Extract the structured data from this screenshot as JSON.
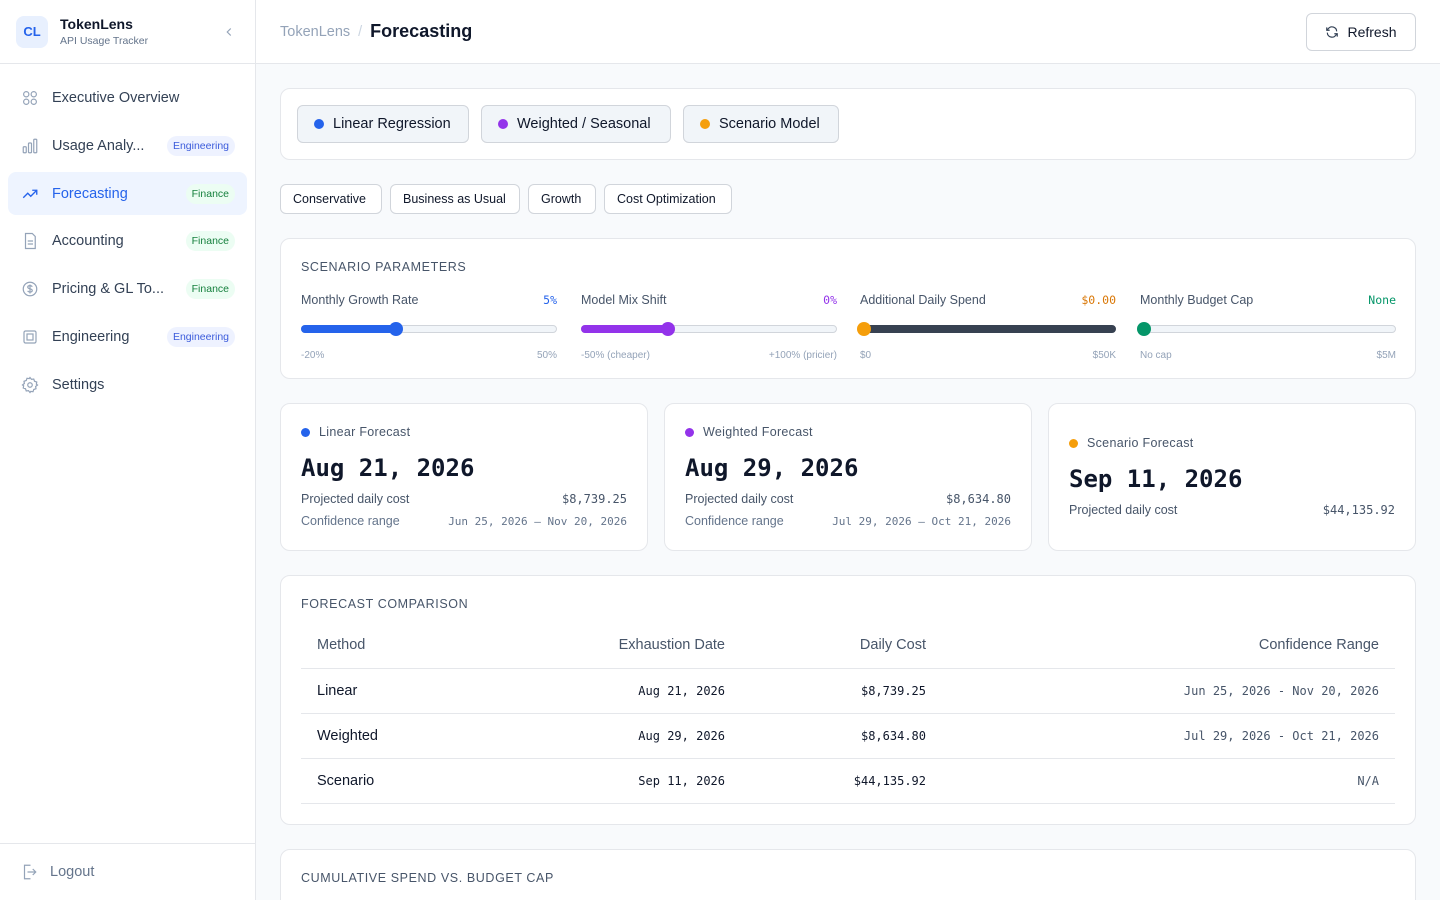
{
  "app": {
    "logo": "CL",
    "name": "TokenLens",
    "subtitle": "API Usage Tracker"
  },
  "sidebar": {
    "items": [
      {
        "label": "Executive Overview",
        "icon": "grid-icon",
        "badge": ""
      },
      {
        "label": "Usage Analytics",
        "icon": "bar-chart-icon",
        "badge": "Engineering"
      },
      {
        "label": "Forecasting",
        "icon": "trend-up-icon",
        "badge": "Finance",
        "active": true
      },
      {
        "label": "Accounting",
        "icon": "document-icon",
        "badge": "Finance"
      },
      {
        "label": "Pricing & GL Tools",
        "icon": "dollar-circle-icon",
        "badge": "Finance"
      },
      {
        "label": "Engineering",
        "icon": "chip-icon",
        "badge": "Engineering"
      },
      {
        "label": "Settings",
        "icon": "gear-icon",
        "badge": ""
      }
    ],
    "logout": "Logout"
  },
  "header": {
    "breadcrumb_root": "TokenLens",
    "breadcrumb_sep": "/",
    "title": "Forecasting",
    "refresh": "Refresh"
  },
  "methods": [
    {
      "label": "Linear Regression",
      "color": "#2563eb"
    },
    {
      "label": "Weighted / Seasonal",
      "color": "#9333ea"
    },
    {
      "label": "Scenario Model",
      "color": "#f59e0b"
    }
  ],
  "presets": [
    "Conservative",
    "Business as Usual",
    "Growth",
    "Cost Optimization"
  ],
  "params": {
    "title": "SCENARIO PARAMETERS",
    "items": [
      {
        "label": "Monthly Growth Rate",
        "value": "5%",
        "min": "-20%",
        "max": "50%",
        "position": 0.37,
        "color": "#2563eb"
      },
      {
        "label": "Model Mix Shift",
        "value": "0%",
        "min": "-50% (cheaper)",
        "max": "+100% (pricier)",
        "position": 0.34,
        "color": "#9333ea"
      },
      {
        "label": "Additional Daily Spend",
        "value": "$0.00",
        "min": "$0",
        "max": "$50K",
        "position": 0.0,
        "color": "#f59e0b"
      },
      {
        "label": "Monthly Budget Cap",
        "value": "None",
        "min": "No cap",
        "max": "$5M",
        "position": 0.0,
        "color": "#059669"
      }
    ]
  },
  "forecasts": {
    "linear": {
      "title": "Linear Forecast",
      "date": "Aug 21, 2026",
      "cost_label": "Projected daily cost",
      "cost": "$8,739.25",
      "range_label": "Confidence range",
      "range": "Jun 25, 2026 — Nov 20, 2026"
    },
    "weighted": {
      "title": "Weighted Forecast",
      "date": "Aug 29, 2026",
      "cost_label": "Projected daily cost",
      "cost": "$8,634.80",
      "range_label": "Confidence range",
      "range": "Jul 29, 2026 — Oct 21, 2026"
    },
    "scenario": {
      "title": "Scenario Forecast",
      "date": "Sep 11, 2026",
      "cost_label": "Projected daily cost",
      "cost": "$44,135.92"
    }
  },
  "comparison": {
    "title": "FORECAST COMPARISON",
    "headers": {
      "method": "Method",
      "date": "Exhaustion Date",
      "cost": "Daily Cost",
      "range": "Confidence Range"
    },
    "rows": [
      {
        "method": "Linear",
        "date": "Aug 21, 2026",
        "cost": "$8,739.25",
        "range": "Jun 25, 2026 - Nov 20, 2026"
      },
      {
        "method": "Weighted",
        "date": "Aug 29, 2026",
        "cost": "$8,634.80",
        "range": "Jul 29, 2026 - Oct 21, 2026"
      },
      {
        "method": "Scenario",
        "date": "Sep 11, 2026",
        "cost": "$44,135.92",
        "range": "N/A"
      }
    ]
  },
  "cumulative": {
    "title": "CUMULATIVE SPEND VS. BUDGET CAP"
  }
}
